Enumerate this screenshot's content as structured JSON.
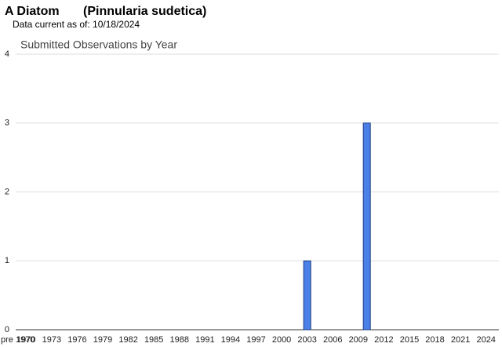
{
  "chart_data": {
    "type": "bar",
    "title": "A Diatom",
    "title_species": "(Pinnularia sudetica)",
    "subtitle": "Data current as of: 10/18/2024",
    "chart_title": "Submitted Observations by Year",
    "categories": [
      "pre 1970",
      "1970",
      null,
      null,
      "1973",
      null,
      null,
      "1976",
      null,
      null,
      "1979",
      null,
      null,
      "1982",
      null,
      null,
      "1985",
      null,
      null,
      "1988",
      null,
      null,
      "1991",
      null,
      null,
      "1994",
      null,
      null,
      "1997",
      null,
      null,
      "2000",
      null,
      null,
      "2003",
      null,
      null,
      "2006",
      null,
      null,
      "2009",
      null,
      null,
      "2012",
      null,
      null,
      "2015",
      null,
      null,
      "2018",
      null,
      null,
      "2021",
      null,
      null,
      "2024",
      null
    ],
    "values": [
      0,
      0,
      0,
      0,
      0,
      0,
      0,
      0,
      0,
      0,
      0,
      0,
      0,
      0,
      0,
      0,
      0,
      0,
      0,
      0,
      0,
      0,
      0,
      0,
      0,
      0,
      0,
      0,
      0,
      0,
      0,
      0,
      0,
      0,
      1,
      0,
      0,
      0,
      0,
      0,
      0,
      3,
      0,
      0,
      0,
      0,
      0,
      0,
      0,
      0,
      0,
      0,
      0,
      0,
      0,
      0,
      0
    ],
    "color": "#4a80e8",
    "ylim": [
      0,
      4
    ],
    "yticks": [
      0,
      1,
      2,
      3,
      4
    ],
    "grid": true
  }
}
